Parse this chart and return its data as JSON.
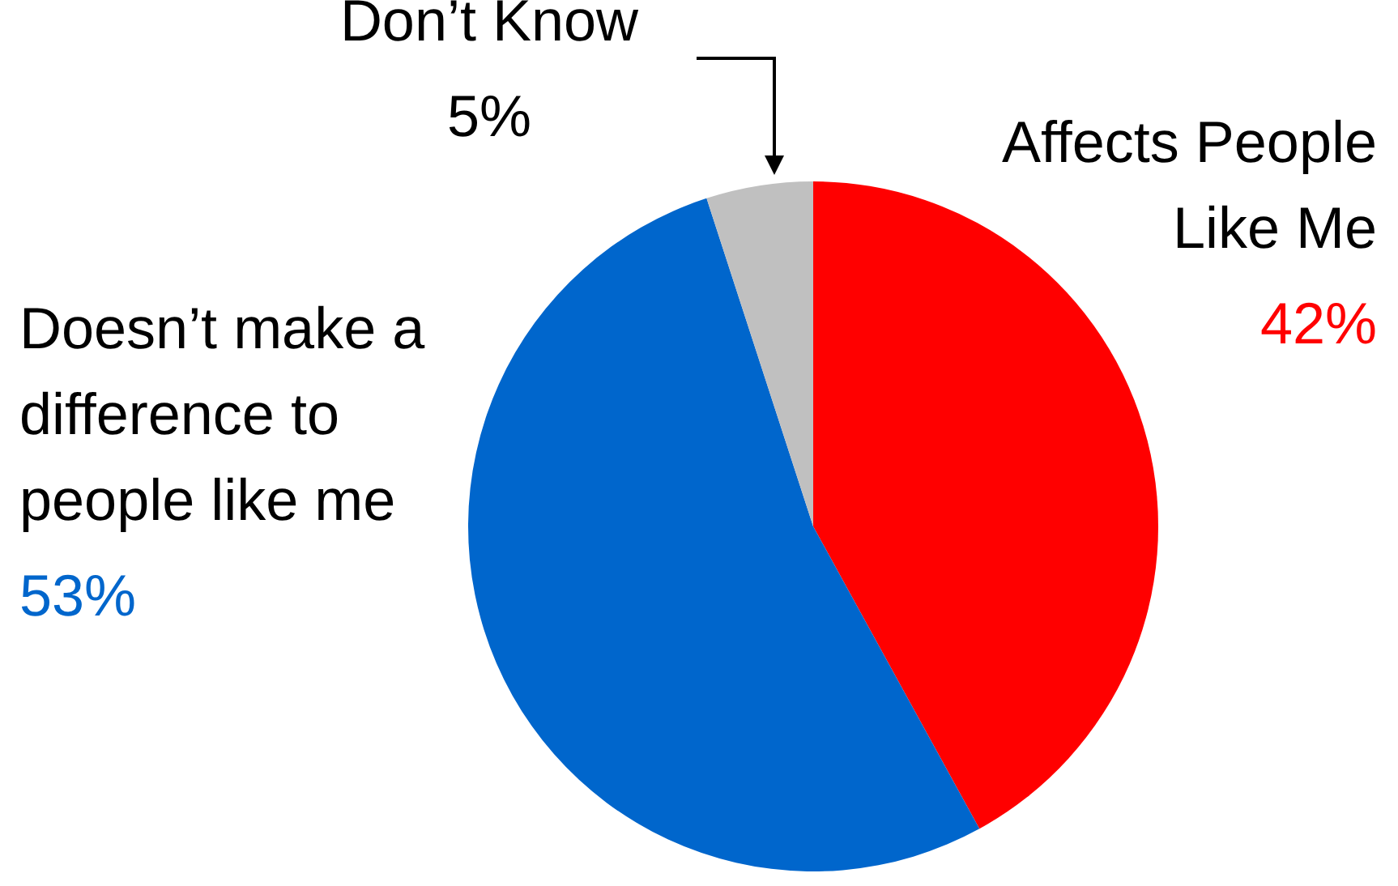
{
  "chart_data": {
    "type": "pie",
    "categories": [
      "Affects People Like Me",
      "Doesn’t make a difference to people like me",
      "Don’t Know"
    ],
    "values": [
      42,
      53,
      5
    ],
    "colors": [
      "#ff0000",
      "#0066cc",
      "#c0c0c0"
    ],
    "value_labels": [
      "42%",
      "53%",
      "5%"
    ]
  }
}
